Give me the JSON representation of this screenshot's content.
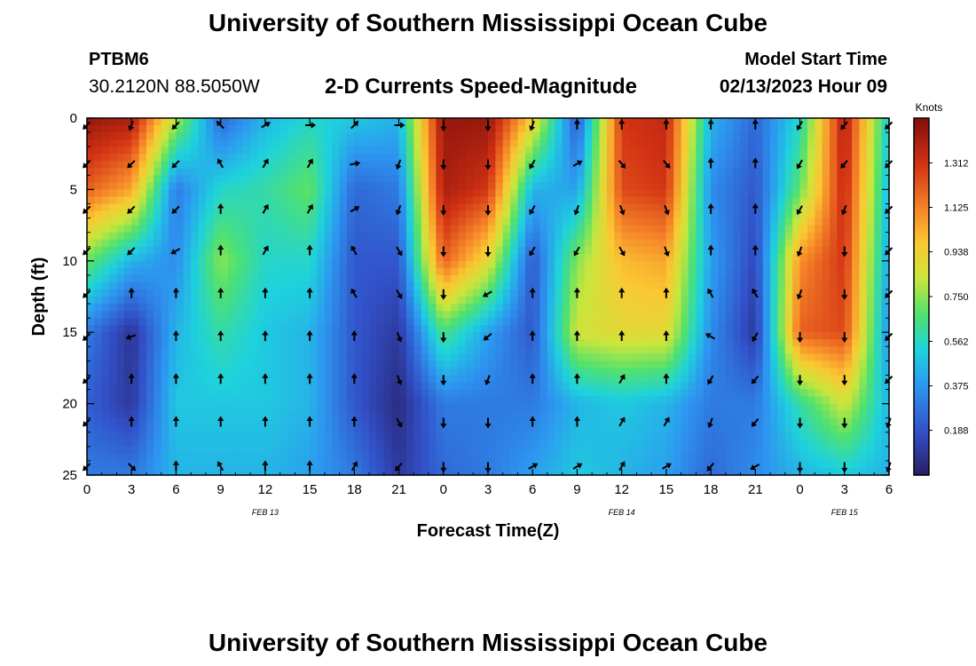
{
  "header": {
    "title": "University of Southern Mississippi Ocean Cube",
    "station": "PTBM6",
    "coords": "30.2120N  88.5050W",
    "plot_title": "2-D Currents Speed-Magnitude",
    "model_start_label": "Model Start Time",
    "model_start_value": "02/13/2023 Hour 09"
  },
  "footer": {
    "title": "University of Southern Mississippi Ocean Cube"
  },
  "chart_data": {
    "type": "heatmap",
    "title": "2-D Currents Speed-Magnitude",
    "xlabel": "Forecast Time(Z)",
    "ylabel": "Depth (ft)",
    "x_ticks": [
      "0",
      "3",
      "6",
      "9",
      "12",
      "15",
      "18",
      "21",
      "0",
      "3",
      "6",
      "9",
      "12",
      "15",
      "18",
      "21",
      "0",
      "3",
      "6"
    ],
    "x_range_hours": [
      0,
      54
    ],
    "y_ticks": [
      "0",
      "5",
      "10",
      "15",
      "20",
      "25"
    ],
    "y_range_ft": [
      0,
      25
    ],
    "date_labels": [
      {
        "label": "FEB 13",
        "hour": 12
      },
      {
        "label": "FEB 14",
        "hour": 36
      },
      {
        "label": "FEB 15",
        "hour": 51
      }
    ],
    "colorbar": {
      "label": "Knots",
      "range": [
        0,
        1.5
      ],
      "ticks": [
        "0.188",
        "0.375",
        "0.562",
        "0.750",
        "0.938",
        "1.125",
        "1.312"
      ]
    },
    "speed_columns": [
      {
        "hour": 0,
        "depth_ft": [
          0,
          5,
          10,
          15,
          20,
          25
        ],
        "knots": [
          1.45,
          1.2,
          0.7,
          0.3,
          0.22,
          0.3
        ]
      },
      {
        "hour": 3,
        "depth_ft": [
          0,
          5,
          10,
          15,
          20,
          25
        ],
        "knots": [
          1.4,
          1.05,
          0.45,
          0.08,
          0.1,
          0.3
        ]
      },
      {
        "hour": 6,
        "depth_ft": [
          0,
          5,
          10,
          15,
          20,
          25
        ],
        "knots": [
          0.8,
          0.3,
          0.35,
          0.45,
          0.5,
          0.45
        ]
      },
      {
        "hour": 9,
        "depth_ft": [
          0,
          5,
          10,
          15,
          20,
          25
        ],
        "knots": [
          0.25,
          0.55,
          0.75,
          0.6,
          0.5,
          0.45
        ]
      },
      {
        "hour": 12,
        "depth_ft": [
          0,
          5,
          10,
          15,
          20,
          25
        ],
        "knots": [
          0.45,
          0.6,
          0.55,
          0.5,
          0.5,
          0.45
        ]
      },
      {
        "hour": 15,
        "depth_ft": [
          0,
          5,
          10,
          15,
          20,
          25
        ],
        "knots": [
          0.55,
          0.7,
          0.55,
          0.45,
          0.45,
          0.4
        ]
      },
      {
        "hour": 18,
        "depth_ft": [
          0,
          5,
          10,
          15,
          20,
          25
        ],
        "knots": [
          0.5,
          0.25,
          0.2,
          0.2,
          0.2,
          0.3
        ]
      },
      {
        "hour": 21,
        "depth_ft": [
          0,
          5,
          10,
          15,
          20,
          25
        ],
        "knots": [
          0.45,
          0.3,
          0.2,
          0.1,
          0.05,
          0.1
        ]
      },
      {
        "hour": 24,
        "depth_ft": [
          0,
          5,
          10,
          15,
          20,
          25
        ],
        "knots": [
          1.45,
          1.4,
          1.2,
          0.65,
          0.3,
          0.25
        ]
      },
      {
        "hour": 27,
        "depth_ft": [
          0,
          5,
          10,
          15,
          20,
          25
        ],
        "knots": [
          1.45,
          1.3,
          0.9,
          0.4,
          0.3,
          0.3
        ]
      },
      {
        "hour": 30,
        "depth_ft": [
          0,
          5,
          10,
          15,
          20,
          25
        ],
        "knots": [
          0.95,
          0.45,
          0.2,
          0.2,
          0.3,
          0.4
        ]
      },
      {
        "hour": 33,
        "depth_ft": [
          0,
          5,
          10,
          15,
          20,
          25
        ],
        "knots": [
          0.2,
          0.4,
          0.75,
          0.85,
          0.45,
          0.5
        ]
      },
      {
        "hour": 36,
        "depth_ft": [
          0,
          5,
          10,
          15,
          20,
          25
        ],
        "knots": [
          1.3,
          1.25,
          1.0,
          0.9,
          0.5,
          0.45
        ]
      },
      {
        "hour": 39,
        "depth_ft": [
          0,
          5,
          10,
          15,
          20,
          25
        ],
        "knots": [
          1.35,
          1.3,
          1.05,
          0.9,
          0.45,
          0.4
        ]
      },
      {
        "hour": 42,
        "depth_ft": [
          0,
          5,
          10,
          15,
          20,
          25
        ],
        "knots": [
          0.45,
          0.35,
          0.4,
          0.35,
          0.3,
          0.25
        ]
      },
      {
        "hour": 45,
        "depth_ft": [
          0,
          5,
          10,
          15,
          20,
          25
        ],
        "knots": [
          0.25,
          0.2,
          0.15,
          0.1,
          0.3,
          0.35
        ]
      },
      {
        "hour": 48,
        "depth_ft": [
          0,
          5,
          10,
          15,
          20,
          25
        ],
        "knots": [
          0.55,
          0.7,
          1.1,
          1.2,
          0.6,
          0.45
        ]
      },
      {
        "hour": 51,
        "depth_ft": [
          0,
          5,
          10,
          15,
          20,
          25
        ],
        "knots": [
          1.4,
          1.35,
          1.3,
          1.25,
          0.85,
          0.5
        ]
      },
      {
        "hour": 54,
        "depth_ft": [
          0,
          5,
          10,
          15,
          20,
          25
        ],
        "knots": [
          0.5,
          0.45,
          0.4,
          0.35,
          0.45,
          0.45
        ]
      }
    ],
    "vector_directions_deg": [
      {
        "hour": 0,
        "deg": [
          225,
          225,
          225,
          225,
          225,
          225,
          225,
          225,
          225
        ]
      },
      {
        "hour": 3,
        "deg": [
          200,
          225,
          225,
          225,
          0,
          250,
          0,
          0,
          135
        ]
      },
      {
        "hour": 6,
        "deg": [
          225,
          225,
          225,
          240,
          0,
          0,
          0,
          0,
          0
        ]
      },
      {
        "hour": 9,
        "deg": [
          315,
          330,
          0,
          0,
          0,
          0,
          0,
          0,
          330
        ]
      },
      {
        "hour": 12,
        "deg": [
          60,
          30,
          30,
          30,
          0,
          0,
          0,
          0,
          0
        ]
      },
      {
        "hour": 15,
        "deg": [
          90,
          30,
          30,
          0,
          0,
          0,
          0,
          0,
          0
        ]
      },
      {
        "hour": 18,
        "deg": [
          45,
          80,
          60,
          330,
          330,
          0,
          0,
          0,
          30
        ]
      },
      {
        "hour": 21,
        "deg": [
          90,
          200,
          200,
          150,
          150,
          160,
          160,
          150,
          220
        ]
      },
      {
        "hour": 24,
        "deg": [
          180,
          180,
          180,
          180,
          180,
          180,
          180,
          180,
          180
        ]
      },
      {
        "hour": 27,
        "deg": [
          180,
          180,
          180,
          180,
          240,
          230,
          200,
          180,
          180
        ]
      },
      {
        "hour": 30,
        "deg": [
          200,
          210,
          210,
          210,
          0,
          0,
          0,
          0,
          60
        ]
      },
      {
        "hour": 33,
        "deg": [
          0,
          60,
          200,
          210,
          0,
          0,
          0,
          0,
          60
        ]
      },
      {
        "hour": 36,
        "deg": [
          0,
          140,
          160,
          150,
          0,
          0,
          30,
          30,
          30
        ]
      },
      {
        "hour": 39,
        "deg": [
          0,
          140,
          160,
          160,
          0,
          0,
          0,
          30,
          60
        ]
      },
      {
        "hour": 42,
        "deg": [
          0,
          0,
          0,
          0,
          330,
          300,
          210,
          200,
          220
        ]
      },
      {
        "hour": 45,
        "deg": [
          0,
          0,
          0,
          0,
          330,
          210,
          220,
          220,
          240
        ]
      },
      {
        "hour": 48,
        "deg": [
          210,
          210,
          210,
          200,
          200,
          180,
          180,
          180,
          180
        ]
      },
      {
        "hour": 51,
        "deg": [
          220,
          220,
          200,
          180,
          180,
          180,
          180,
          180,
          180
        ]
      },
      {
        "hour": 54,
        "deg": [
          225,
          225,
          225,
          225,
          225,
          225,
          225,
          200,
          200
        ]
      }
    ]
  }
}
